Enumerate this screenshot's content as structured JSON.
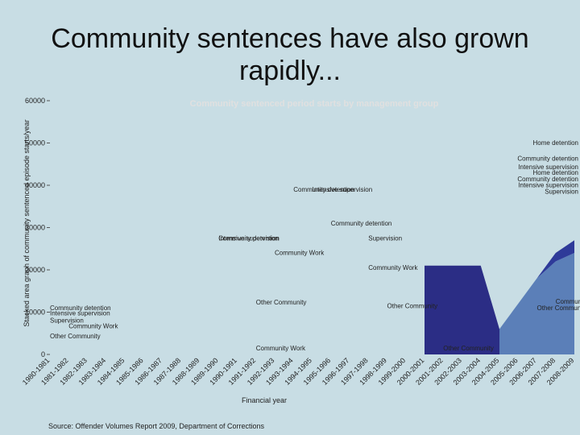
{
  "title": "Community sentences have also grown rapidly...",
  "source": "Source: Offender Volumes Report 2009, Department of Corrections",
  "chart_data": {
    "type": "area",
    "title": "Community sentenced period starts by management group",
    "xlabel": "Financial year",
    "ylabel": "Stacked area graph of community sentenced episode starts/year",
    "ylim": [
      0,
      60000
    ],
    "yticks": [
      0,
      10000,
      20000,
      30000,
      40000,
      50000,
      60000
    ],
    "stacked": true,
    "legend": "right",
    "x": [
      "1980-1981",
      "1981-1982",
      "1982-1983",
      "1983-1984",
      "1984-1985",
      "1985-1986",
      "1986-1987",
      "1987-1988",
      "1988-1989",
      "1989-1990",
      "1990-1991",
      "1991-1992",
      "1992-1993",
      "1993-1994",
      "1994-1995",
      "1995-1996",
      "1996-1997",
      "1997-1998",
      "1998-1999",
      "1999-2000",
      "2000-2001",
      "2001-2002",
      "2002-2003",
      "2003-2004",
      "2004-2005",
      "2005-2006",
      "2006-2007",
      "2007-2008",
      "2008-2009"
    ],
    "series": [
      {
        "name": "Other Community",
        "color": "#2e2f86",
        "values": [
          0,
          0,
          0,
          0,
          0,
          0,
          0,
          0,
          0,
          0,
          0,
          0,
          0,
          0,
          0,
          0,
          0,
          0,
          0,
          0,
          0,
          0,
          0,
          0,
          0,
          0,
          0,
          0,
          0
        ]
      },
      {
        "name": "Community Work",
        "color": "#5b7fb8",
        "values": [
          0,
          0,
          0,
          0,
          0,
          0,
          0,
          0,
          0,
          0,
          0,
          0,
          0,
          0,
          0,
          0,
          0,
          0,
          0,
          0,
          0,
          0,
          0,
          0,
          6000,
          12000,
          18000,
          22000,
          24000
        ]
      },
      {
        "name": "Supervision",
        "color": "#aab8ce",
        "values": [
          0,
          0,
          0,
          0,
          0,
          0,
          0,
          0,
          0,
          0,
          0,
          0,
          0,
          0,
          0,
          0,
          0,
          0,
          0,
          0,
          0,
          0,
          0,
          0,
          0,
          0,
          0,
          0,
          0
        ]
      },
      {
        "name": "Intensive supervision",
        "color": "#b8c6d8",
        "values": [
          0,
          0,
          0,
          0,
          0,
          0,
          0,
          0,
          0,
          0,
          0,
          0,
          0,
          0,
          0,
          0,
          0,
          0,
          0,
          0,
          0,
          0,
          0,
          0,
          0,
          0,
          0,
          0,
          0
        ]
      },
      {
        "name": "Community detention",
        "color": "#2e3a99",
        "values": [
          0,
          0,
          0,
          0,
          0,
          0,
          0,
          0,
          0,
          0,
          0,
          0,
          0,
          0,
          0,
          0,
          0,
          0,
          0,
          0,
          0,
          0,
          0,
          0,
          0,
          0,
          0,
          2000,
          3000
        ]
      },
      {
        "name": "Home detention",
        "color": "#c8d2e0",
        "values": [
          0,
          0,
          0,
          0,
          0,
          0,
          0,
          0,
          0,
          0,
          0,
          0,
          0,
          0,
          0,
          0,
          0,
          0,
          0,
          0,
          0,
          0,
          0,
          0,
          0,
          0,
          0,
          0,
          0
        ]
      }
    ],
    "band": {
      "name": "Supervision",
      "color": "#2b2d85",
      "values": [
        null,
        null,
        null,
        null,
        null,
        null,
        null,
        null,
        null,
        null,
        null,
        null,
        null,
        null,
        null,
        null,
        null,
        null,
        null,
        null,
        21000,
        21000,
        21000,
        21000,
        null,
        null,
        null,
        null,
        null
      ]
    },
    "annotations": [
      {
        "text": "Home detention",
        "x": "2008-2009",
        "y": 49500
      },
      {
        "text": "Community detention",
        "x": "2008-2009",
        "y": 45800
      },
      {
        "text": "Intensive supervision",
        "x": "2008-2009",
        "y": 43800
      },
      {
        "text": "Home detention",
        "x": "2008-2009",
        "y": 42500
      },
      {
        "text": "Community detention",
        "x": "2008-2009",
        "y": 41000
      },
      {
        "text": "Intensive supervision",
        "x": "2008-2009",
        "y": 39500
      },
      {
        "text": "Supervision",
        "x": "2008-2009",
        "y": 38000
      },
      {
        "text": "Community detention",
        "x": "1980-1981",
        "y": 10500
      },
      {
        "text": "Intensive supervision",
        "x": "1980-1981",
        "y": 9200
      },
      {
        "text": "Supervision",
        "x": "1980-1981",
        "y": 7500
      },
      {
        "text": "Community Work",
        "x": "1981-1982",
        "y": 6200
      },
      {
        "text": "Other Community",
        "x": "1980-1981",
        "y": 3800
      },
      {
        "text": "Community detention",
        "x": "1993-1994",
        "y": 38500
      },
      {
        "text": "Intensive supervision",
        "x": "1994-1995",
        "y": 38500
      },
      {
        "text": "Community detention",
        "x": "1995-1996",
        "y": 30500
      },
      {
        "text": "Supervision",
        "x": "1997-1998",
        "y": 27000
      },
      {
        "text": "Community Work",
        "x": "1997-1998",
        "y": 20000
      },
      {
        "text": "Other Community",
        "x": "1998-1999",
        "y": 11000
      },
      {
        "text": "Community detention",
        "x": "1989-1990",
        "y": 27000
      },
      {
        "text": "Intensive supervision",
        "x": "1989-1990",
        "y": 27000
      },
      {
        "text": "Community Work",
        "x": "1992-1993",
        "y": 23500
      },
      {
        "text": "Other Community",
        "x": "1991-1992",
        "y": 11800
      },
      {
        "text": "Community Work",
        "x": "1991-1992",
        "y": 1000
      },
      {
        "text": "Other Community",
        "x": "2001-2002",
        "y": 1000
      },
      {
        "text": "Community Work",
        "x": "2007-2008",
        "y": 12000
      },
      {
        "text": "Other Community",
        "x": "2006-2007",
        "y": 10500
      }
    ]
  }
}
